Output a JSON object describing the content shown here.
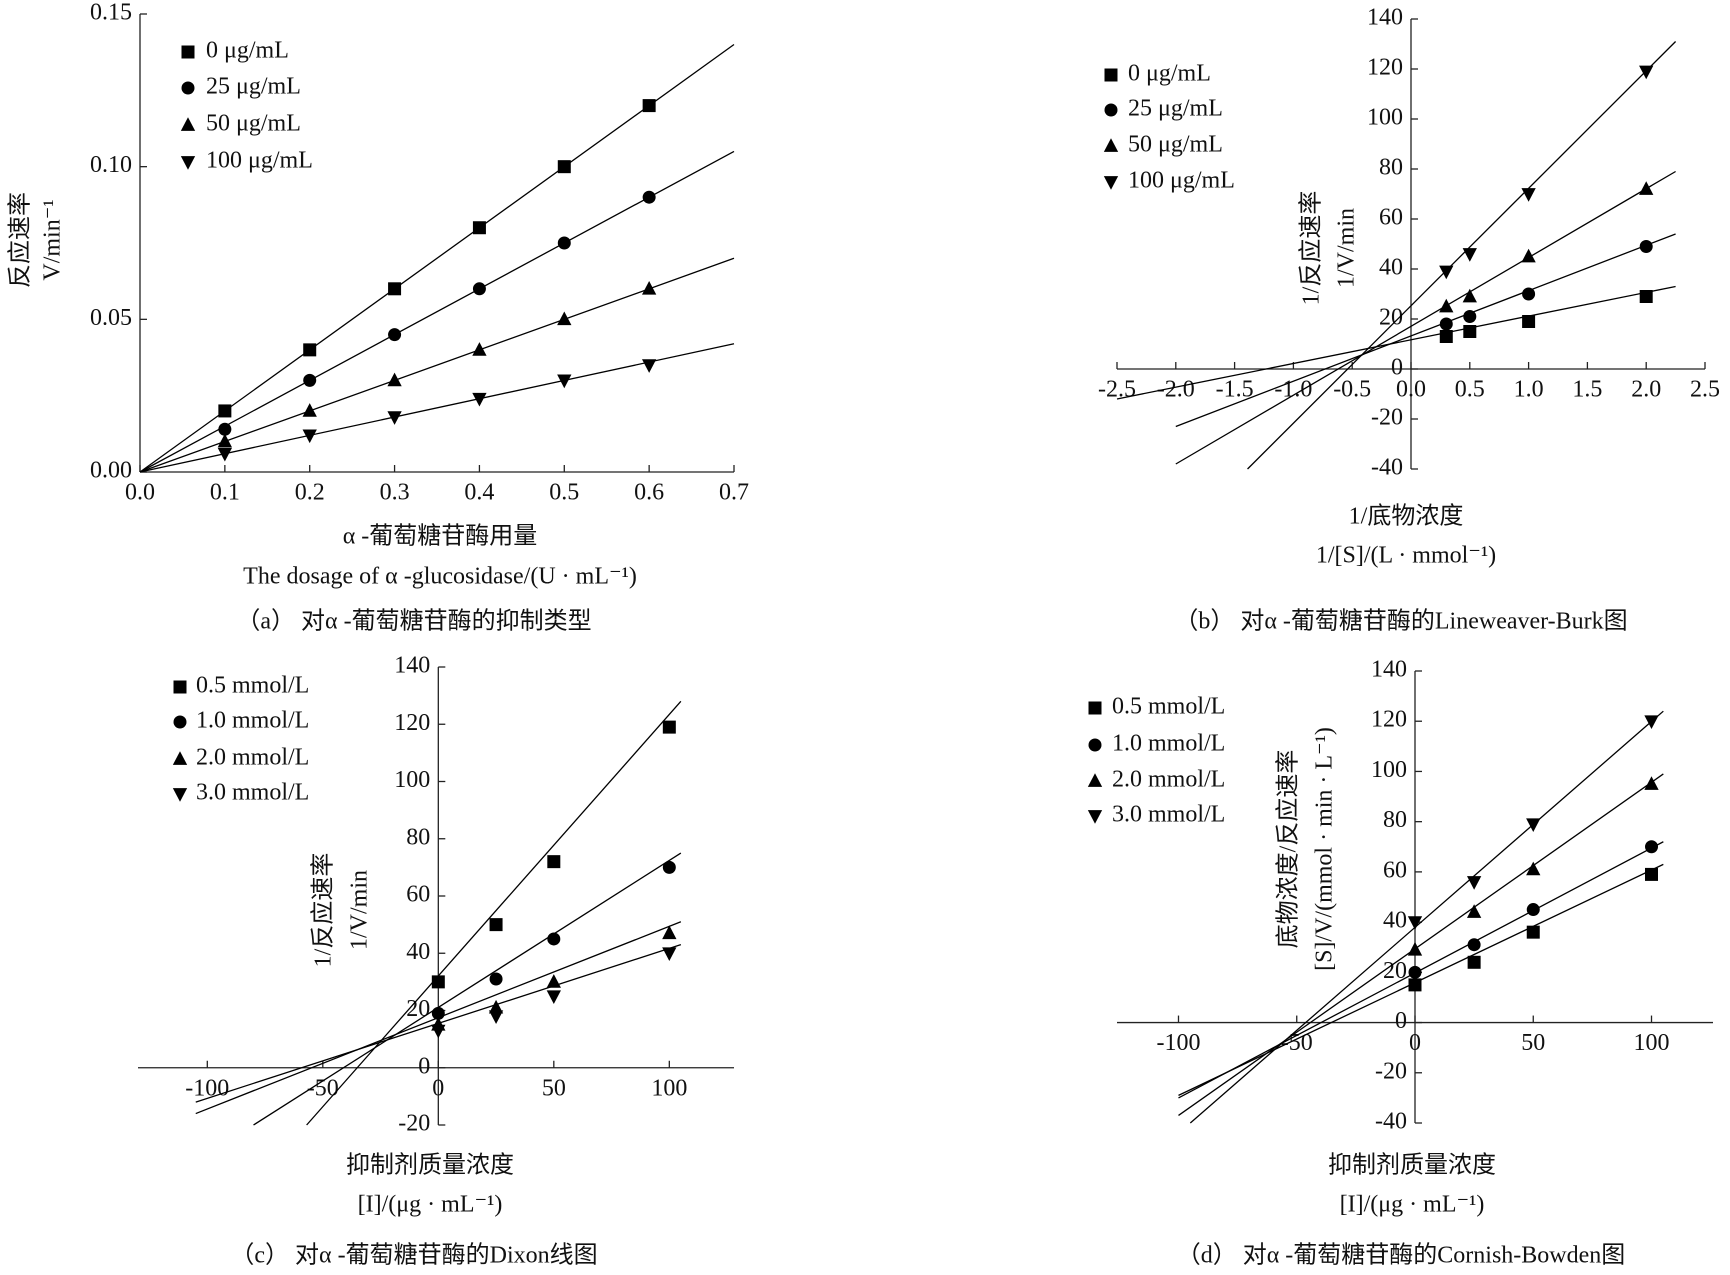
{
  "chart_data": [
    {
      "type": "scatter",
      "y_label": [
        "反应速率",
        "V/min⁻¹"
      ],
      "x_label": [
        "α -葡萄糖苷酶用量",
        "The dosage of α -glucosidase/(U · mL⁻¹)"
      ],
      "caption": "（a） 对α -葡萄糖苷酶的抑制类型",
      "x": [
        0.1,
        0.2,
        0.3,
        0.4,
        0.5,
        0.6
      ],
      "xlim": [
        0,
        0.7
      ],
      "ylim": [
        0,
        0.15
      ],
      "xticks": [
        {
          "value": 0,
          "label": "0.0"
        },
        0.1,
        0.2,
        0.3,
        0.4,
        0.5,
        0.6,
        0.7
      ],
      "yticks": [
        {
          "value": 0,
          "label": "0.00"
        },
        {
          "value": 0.05,
          "label": "0.05"
        },
        {
          "value": 0.1,
          "label": "0.10"
        },
        {
          "value": 0.15,
          "label": "0.15"
        }
      ],
      "series": [
        {
          "name": "0 μg/mL",
          "color": "#000000",
          "marker": "square",
          "values": [
            0.02,
            0.04,
            0.06,
            0.08,
            0.1,
            0.12
          ],
          "fit": {
            "x": [
              0,
              0.7
            ],
            "y": [
              0,
              0.14
            ]
          }
        },
        {
          "name": "25 μg/mL",
          "color": "#000000",
          "marker": "circle",
          "values": [
            0.014,
            0.03,
            0.045,
            0.06,
            0.075,
            0.09
          ],
          "fit": {
            "x": [
              0,
              0.7
            ],
            "y": [
              0,
              0.105
            ]
          }
        },
        {
          "name": "50 μg/mL",
          "color": "#000000",
          "marker": "triangle-up",
          "values": [
            0.01,
            0.02,
            0.03,
            0.04,
            0.05,
            0.06
          ],
          "fit": {
            "x": [
              0,
              0.7
            ],
            "y": [
              0,
              0.07
            ]
          }
        },
        {
          "name": "100 μg/mL",
          "color": "#000000",
          "marker": "triangle-down",
          "values": [
            0.006,
            0.012,
            0.018,
            0.024,
            0.03,
            0.035
          ],
          "fit": {
            "x": [
              0,
              0.7
            ],
            "y": [
              0,
              0.042
            ]
          }
        }
      ]
    },
    {
      "type": "scatter",
      "y_label": [
        "1/反应速率",
        "1/V/min"
      ],
      "x_label": [
        "1/底物浓度",
        "1/[S]/(L · mmol⁻¹)"
      ],
      "caption": "（b） 对α -葡萄糖苷酶的Lineweaver-Burk图",
      "x": [
        0.3,
        0.5,
        1.0,
        2.0
      ],
      "xlim": [
        -2.5,
        2.5
      ],
      "ylim": [
        -40,
        140
      ],
      "xticks": [
        -2.5,
        {
          "value": -2,
          "label": "-2.0"
        },
        -1.5,
        {
          "value": -1,
          "label": "-1.0"
        },
        -0.5,
        {
          "value": 0,
          "label": "0.0"
        },
        0.5,
        {
          "value": 1,
          "label": "1.0"
        },
        1.5,
        {
          "value": 2,
          "label": "2.0"
        },
        2.5
      ],
      "yticks": [
        -40,
        -20,
        0,
        20,
        40,
        60,
        80,
        100,
        120,
        140
      ],
      "series": [
        {
          "name": "0 μg/mL",
          "color": "#000000",
          "marker": "square",
          "values": [
            13,
            15,
            19,
            29
          ],
          "fit": {
            "x": [
              -2.5,
              2.25
            ],
            "y": [
              -12,
              33
            ]
          }
        },
        {
          "name": "25 μg/mL",
          "color": "#000000",
          "marker": "circle",
          "values": [
            18,
            21,
            30,
            49
          ],
          "fit": {
            "x": [
              -2.0,
              2.25
            ],
            "y": [
              -23,
              54
            ]
          }
        },
        {
          "name": "50 μg/mL",
          "color": "#000000",
          "marker": "triangle-up",
          "values": [
            25,
            29,
            45,
            72
          ],
          "fit": {
            "x": [
              -2.0,
              2.25
            ],
            "y": [
              -38,
              79
            ]
          }
        },
        {
          "name": "100 μg/mL",
          "color": "#000000",
          "marker": "triangle-down",
          "values": [
            39,
            46,
            70,
            119
          ],
          "fit": {
            "x": [
              -1.39,
              2.25
            ],
            "y": [
              -40,
              131
            ]
          }
        }
      ]
    },
    {
      "type": "scatter",
      "y_label": [
        "1/反应速率",
        "1/V/min"
      ],
      "x_label": [
        "抑制剂质量浓度",
        "[I]/(μg · mL⁻¹)"
      ],
      "caption": "（c） 对α -葡萄糖苷酶的Dixon线图",
      "x": [
        0,
        25,
        50,
        100
      ],
      "xlim": [
        -130,
        128
      ],
      "ylim": [
        -20,
        140
      ],
      "xticks": [
        -100,
        -50,
        0,
        50,
        100
      ],
      "yticks": [
        -20,
        0,
        20,
        40,
        60,
        80,
        100,
        120,
        140
      ],
      "series": [
        {
          "name": "0.5 mmol/L",
          "color": "#000000",
          "marker": "square",
          "values": [
            30,
            50,
            72,
            119
          ],
          "fit": {
            "x": [
              -57,
              105
            ],
            "y": [
              -20,
              128
            ]
          }
        },
        {
          "name": "1.0 mmol/L",
          "color": "#000000",
          "marker": "circle",
          "values": [
            19,
            31,
            45,
            70
          ],
          "fit": {
            "x": [
              -80,
              105
            ],
            "y": [
              -20,
              75
            ]
          }
        },
        {
          "name": "2.0 mmol/L",
          "color": "#000000",
          "marker": "triangle-up",
          "values": [
            15,
            21,
            30,
            47
          ],
          "fit": {
            "x": [
              -105,
              105
            ],
            "y": [
              -16,
              51
            ]
          }
        },
        {
          "name": "3.0 mmol/L",
          "color": "#000000",
          "marker": "triangle-down",
          "values": [
            13,
            18,
            25,
            40
          ],
          "fit": {
            "x": [
              -105,
              105
            ],
            "y": [
              -12,
              43
            ]
          }
        }
      ]
    },
    {
      "type": "scatter",
      "y_label": [
        "底物浓度/反应速率",
        "[S]/V/(mmol · min · L⁻¹)"
      ],
      "x_label": [
        "抑制剂质量浓度",
        "[I]/(μg · mL⁻¹)"
      ],
      "caption": "（d） 对α -葡萄糖苷酶的Cornish-Bowden图",
      "x": [
        0,
        25,
        50,
        100
      ],
      "xlim": [
        -126,
        126
      ],
      "ylim": [
        -40,
        140
      ],
      "xticks": [
        -100,
        -50,
        0,
        50,
        100
      ],
      "yticks": [
        -40,
        -20,
        0,
        20,
        40,
        60,
        80,
        100,
        120,
        140
      ],
      "series": [
        {
          "name": "0.5 mmol/L",
          "color": "#000000",
          "marker": "square",
          "values": [
            15,
            24,
            36,
            59
          ],
          "fit": {
            "x": [
              -100,
              105
            ],
            "y": [
              -29,
              63
            ]
          }
        },
        {
          "name": "1.0 mmol/L",
          "color": "#000000",
          "marker": "circle",
          "values": [
            20,
            31,
            45,
            70
          ],
          "fit": {
            "x": [
              -100,
              105
            ],
            "y": [
              -30,
              72
            ]
          }
        },
        {
          "name": "2.0 mmol/L",
          "color": "#000000",
          "marker": "triangle-up",
          "values": [
            29,
            44,
            61,
            95
          ],
          "fit": {
            "x": [
              -100,
              105
            ],
            "y": [
              -37,
              99
            ]
          }
        },
        {
          "name": "3.0 mmol/L",
          "color": "#000000",
          "marker": "triangle-down",
          "values": [
            40,
            56,
            79,
            120
          ],
          "fit": {
            "x": [
              -95,
              105
            ],
            "y": [
              -40,
              124
            ]
          }
        }
      ]
    }
  ]
}
